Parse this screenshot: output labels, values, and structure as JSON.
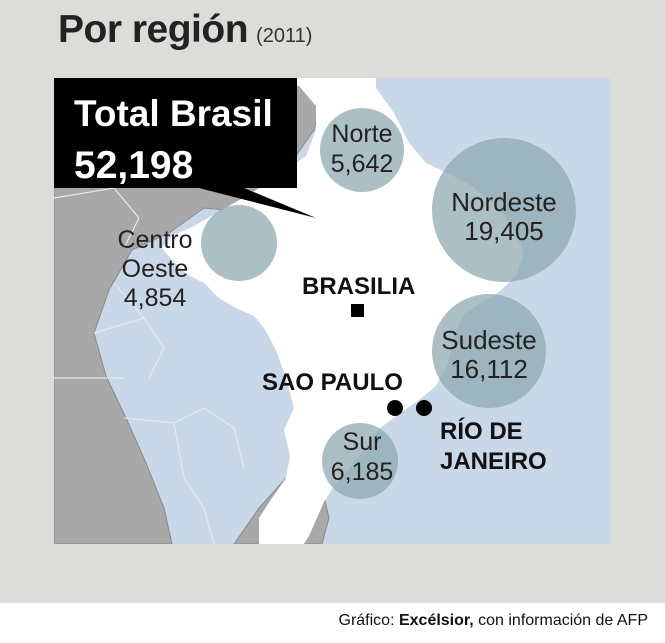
{
  "title": {
    "main": "Por región",
    "sub": "(2011)"
  },
  "total": {
    "label": "Total Brasil",
    "value": "52,198"
  },
  "regions": [
    {
      "name": "Norte",
      "value": "5,642"
    },
    {
      "name": "Nordeste",
      "value": "19,405"
    },
    {
      "name_line1": "Centro",
      "name_line2": "Oeste",
      "value": "4,854"
    },
    {
      "name": "Sudeste",
      "value": "16,112"
    },
    {
      "name": "Sur",
      "value": "6,185"
    }
  ],
  "cities": {
    "brasilia": "BRASILIA",
    "sao_paulo": "SAO PAULO",
    "rio_line1": "RÍO DE",
    "rio_line2": "JANEIRO"
  },
  "footer": {
    "prefix": "Gráfico: ",
    "source": "Excélsior,",
    "suffix": " con información de AFP"
  },
  "colors": {
    "background": "#dcdcd9",
    "sea": "#c8d8e8",
    "land_brazil": "#ffffff",
    "land_neighbors": "#a8a8a8",
    "bubble": "#8fa9b2",
    "total_box": "#000000"
  }
}
